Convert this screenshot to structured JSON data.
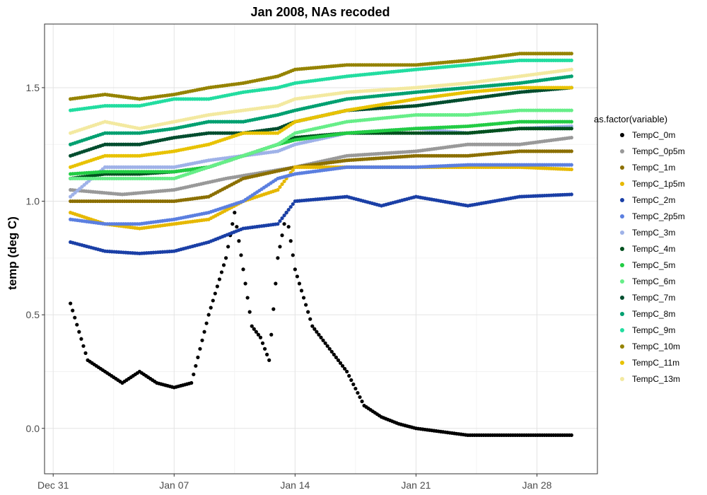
{
  "chart_data": {
    "type": "scatter",
    "title": "Jan 2008, NAs recoded",
    "xlabel": "",
    "ylabel": "temp (deg C)",
    "x_type": "date",
    "xlim": [
      "2007-12-30T12:00",
      "2008-01-31T12:00"
    ],
    "ylim": [
      -0.2,
      1.78
    ],
    "x_ticks": [
      {
        "date": "2007-12-31",
        "label": "Dec 31"
      },
      {
        "date": "2008-01-07",
        "label": "Jan 07"
      },
      {
        "date": "2008-01-14",
        "label": "Jan 14"
      },
      {
        "date": "2008-01-21",
        "label": "Jan 21"
      },
      {
        "date": "2008-01-28",
        "label": "Jan 28"
      }
    ],
    "y_ticks": [
      0.0,
      0.5,
      1.0,
      1.5
    ],
    "y_tick_labels": [
      "0.0",
      "0.5",
      "1.0",
      "1.5"
    ],
    "grid": true,
    "legend": {
      "title": "as.factor(variable)",
      "position": "right"
    },
    "series": [
      {
        "name": "TempC_0m",
        "color": "#000000",
        "points": [
          [
            "2008-01-01",
            0.55
          ],
          [
            "2008-01-02",
            0.3
          ],
          [
            "2008-01-03",
            0.25
          ],
          [
            "2008-01-04",
            0.2
          ],
          [
            "2008-01-05",
            0.25
          ],
          [
            "2008-01-06",
            0.2
          ],
          [
            "2008-01-07",
            0.18
          ],
          [
            "2008-01-08",
            0.2
          ],
          [
            "2008-01-09",
            0.5
          ],
          [
            "2008-01-10",
            0.75
          ],
          [
            "2008-01-10T12:00",
            0.95
          ],
          [
            "2008-01-11",
            0.7
          ],
          [
            "2008-01-11T12:00",
            0.45
          ],
          [
            "2008-01-12",
            0.4
          ],
          [
            "2008-01-12T12:00",
            0.3
          ],
          [
            "2008-01-13",
            0.75
          ],
          [
            "2008-01-13T12:00",
            0.95
          ],
          [
            "2008-01-14",
            0.7
          ],
          [
            "2008-01-15",
            0.45
          ],
          [
            "2008-01-16",
            0.35
          ],
          [
            "2008-01-17",
            0.25
          ],
          [
            "2008-01-18",
            0.1
          ],
          [
            "2008-01-19",
            0.05
          ],
          [
            "2008-01-20",
            0.02
          ],
          [
            "2008-01-21",
            0.0
          ],
          [
            "2008-01-24",
            -0.03
          ],
          [
            "2008-01-27",
            -0.03
          ],
          [
            "2008-01-30",
            -0.03
          ]
        ]
      },
      {
        "name": "TempC_0p5m",
        "color": "#999999",
        "points": [
          [
            "2008-01-01",
            1.05
          ],
          [
            "2008-01-04",
            1.03
          ],
          [
            "2008-01-07",
            1.05
          ],
          [
            "2008-01-10",
            1.1
          ],
          [
            "2008-01-14",
            1.15
          ],
          [
            "2008-01-17",
            1.2
          ],
          [
            "2008-01-21",
            1.22
          ],
          [
            "2008-01-24",
            1.25
          ],
          [
            "2008-01-27",
            1.25
          ],
          [
            "2008-01-30",
            1.28
          ]
        ]
      },
      {
        "name": "TempC_1m",
        "color": "#8B6F00",
        "points": [
          [
            "2008-01-01",
            1.0
          ],
          [
            "2008-01-04",
            1.0
          ],
          [
            "2008-01-07",
            1.0
          ],
          [
            "2008-01-09",
            1.02
          ],
          [
            "2008-01-11",
            1.1
          ],
          [
            "2008-01-14",
            1.15
          ],
          [
            "2008-01-17",
            1.18
          ],
          [
            "2008-01-21",
            1.2
          ],
          [
            "2008-01-24",
            1.2
          ],
          [
            "2008-01-27",
            1.22
          ],
          [
            "2008-01-30",
            1.22
          ]
        ]
      },
      {
        "name": "TempC_1p5m",
        "color": "#E6B800",
        "points": [
          [
            "2008-01-01",
            0.95
          ],
          [
            "2008-01-03",
            0.9
          ],
          [
            "2008-01-05",
            0.88
          ],
          [
            "2008-01-07",
            0.9
          ],
          [
            "2008-01-09",
            0.92
          ],
          [
            "2008-01-11",
            1.0
          ],
          [
            "2008-01-13",
            1.05
          ],
          [
            "2008-01-14",
            1.15
          ],
          [
            "2008-01-17",
            1.15
          ],
          [
            "2008-01-21",
            1.15
          ],
          [
            "2008-01-24",
            1.15
          ],
          [
            "2008-01-27",
            1.15
          ],
          [
            "2008-01-30",
            1.14
          ]
        ]
      },
      {
        "name": "TempC_2m",
        "color": "#1A3FA6",
        "points": [
          [
            "2008-01-01",
            0.82
          ],
          [
            "2008-01-03",
            0.78
          ],
          [
            "2008-01-05",
            0.77
          ],
          [
            "2008-01-07",
            0.78
          ],
          [
            "2008-01-09",
            0.82
          ],
          [
            "2008-01-11",
            0.88
          ],
          [
            "2008-01-13",
            0.9
          ],
          [
            "2008-01-14",
            1.0
          ],
          [
            "2008-01-17",
            1.02
          ],
          [
            "2008-01-19",
            0.98
          ],
          [
            "2008-01-21",
            1.02
          ],
          [
            "2008-01-24",
            0.98
          ],
          [
            "2008-01-27",
            1.02
          ],
          [
            "2008-01-30",
            1.03
          ]
        ]
      },
      {
        "name": "TempC_2p5m",
        "color": "#5B7FE0",
        "points": [
          [
            "2008-01-01",
            0.92
          ],
          [
            "2008-01-03",
            0.9
          ],
          [
            "2008-01-05",
            0.9
          ],
          [
            "2008-01-07",
            0.92
          ],
          [
            "2008-01-09",
            0.95
          ],
          [
            "2008-01-11",
            1.0
          ],
          [
            "2008-01-13",
            1.1
          ],
          [
            "2008-01-14",
            1.12
          ],
          [
            "2008-01-17",
            1.15
          ],
          [
            "2008-01-21",
            1.15
          ],
          [
            "2008-01-24",
            1.16
          ],
          [
            "2008-01-27",
            1.16
          ],
          [
            "2008-01-30",
            1.16
          ]
        ]
      },
      {
        "name": "TempC_3m",
        "color": "#9FB2E8",
        "points": [
          [
            "2008-01-01",
            1.02
          ],
          [
            "2008-01-03",
            1.15
          ],
          [
            "2008-01-05",
            1.15
          ],
          [
            "2008-01-07",
            1.15
          ],
          [
            "2008-01-09",
            1.18
          ],
          [
            "2008-01-11",
            1.2
          ],
          [
            "2008-01-13",
            1.22
          ],
          [
            "2008-01-14",
            1.25
          ],
          [
            "2008-01-17",
            1.3
          ],
          [
            "2008-01-21",
            1.32
          ],
          [
            "2008-01-24",
            1.3
          ],
          [
            "2008-01-27",
            1.32
          ],
          [
            "2008-01-30",
            1.33
          ]
        ]
      },
      {
        "name": "TempC_4m",
        "color": "#00501E",
        "points": [
          [
            "2008-01-01",
            1.1
          ],
          [
            "2008-01-03",
            1.12
          ],
          [
            "2008-01-05",
            1.12
          ],
          [
            "2008-01-07",
            1.13
          ],
          [
            "2008-01-09",
            1.15
          ],
          [
            "2008-01-11",
            1.2
          ],
          [
            "2008-01-13",
            1.25
          ],
          [
            "2008-01-14",
            1.28
          ],
          [
            "2008-01-17",
            1.3
          ],
          [
            "2008-01-21",
            1.3
          ],
          [
            "2008-01-24",
            1.3
          ],
          [
            "2008-01-27",
            1.32
          ],
          [
            "2008-01-30",
            1.32
          ]
        ]
      },
      {
        "name": "TempC_5m",
        "color": "#22CC44",
        "points": [
          [
            "2008-01-01",
            1.12
          ],
          [
            "2008-01-03",
            1.13
          ],
          [
            "2008-01-05",
            1.13
          ],
          [
            "2008-01-07",
            1.13
          ],
          [
            "2008-01-09",
            1.15
          ],
          [
            "2008-01-11",
            1.2
          ],
          [
            "2008-01-13",
            1.25
          ],
          [
            "2008-01-14",
            1.27
          ],
          [
            "2008-01-17",
            1.3
          ],
          [
            "2008-01-21",
            1.32
          ],
          [
            "2008-01-24",
            1.33
          ],
          [
            "2008-01-27",
            1.35
          ],
          [
            "2008-01-30",
            1.35
          ]
        ]
      },
      {
        "name": "TempC_6m",
        "color": "#66EE88",
        "points": [
          [
            "2008-01-01",
            1.1
          ],
          [
            "2008-01-03",
            1.1
          ],
          [
            "2008-01-05",
            1.1
          ],
          [
            "2008-01-07",
            1.1
          ],
          [
            "2008-01-09",
            1.15
          ],
          [
            "2008-01-11",
            1.2
          ],
          [
            "2008-01-13",
            1.25
          ],
          [
            "2008-01-14",
            1.3
          ],
          [
            "2008-01-17",
            1.35
          ],
          [
            "2008-01-21",
            1.38
          ],
          [
            "2008-01-24",
            1.38
          ],
          [
            "2008-01-27",
            1.4
          ],
          [
            "2008-01-30",
            1.4
          ]
        ]
      },
      {
        "name": "TempC_7m",
        "color": "#004D2E",
        "points": [
          [
            "2008-01-01",
            1.2
          ],
          [
            "2008-01-03",
            1.25
          ],
          [
            "2008-01-05",
            1.25
          ],
          [
            "2008-01-07",
            1.28
          ],
          [
            "2008-01-09",
            1.3
          ],
          [
            "2008-01-11",
            1.3
          ],
          [
            "2008-01-13",
            1.32
          ],
          [
            "2008-01-14",
            1.35
          ],
          [
            "2008-01-17",
            1.4
          ],
          [
            "2008-01-21",
            1.42
          ],
          [
            "2008-01-24",
            1.45
          ],
          [
            "2008-01-27",
            1.48
          ],
          [
            "2008-01-30",
            1.5
          ]
        ]
      },
      {
        "name": "TempC_8m",
        "color": "#00A070",
        "points": [
          [
            "2008-01-01",
            1.25
          ],
          [
            "2008-01-03",
            1.3
          ],
          [
            "2008-01-05",
            1.3
          ],
          [
            "2008-01-07",
            1.32
          ],
          [
            "2008-01-09",
            1.35
          ],
          [
            "2008-01-11",
            1.35
          ],
          [
            "2008-01-13",
            1.38
          ],
          [
            "2008-01-14",
            1.4
          ],
          [
            "2008-01-17",
            1.45
          ],
          [
            "2008-01-21",
            1.48
          ],
          [
            "2008-01-24",
            1.5
          ],
          [
            "2008-01-27",
            1.52
          ],
          [
            "2008-01-30",
            1.55
          ]
        ]
      },
      {
        "name": "TempC_9m",
        "color": "#22DDA0",
        "points": [
          [
            "2008-01-01",
            1.4
          ],
          [
            "2008-01-03",
            1.42
          ],
          [
            "2008-01-05",
            1.42
          ],
          [
            "2008-01-07",
            1.45
          ],
          [
            "2008-01-09",
            1.45
          ],
          [
            "2008-01-11",
            1.48
          ],
          [
            "2008-01-13",
            1.5
          ],
          [
            "2008-01-14",
            1.52
          ],
          [
            "2008-01-17",
            1.55
          ],
          [
            "2008-01-21",
            1.58
          ],
          [
            "2008-01-24",
            1.6
          ],
          [
            "2008-01-27",
            1.62
          ],
          [
            "2008-01-30",
            1.62
          ]
        ]
      },
      {
        "name": "TempC_10m",
        "color": "#958300",
        "points": [
          [
            "2008-01-01",
            1.45
          ],
          [
            "2008-01-03",
            1.47
          ],
          [
            "2008-01-05",
            1.45
          ],
          [
            "2008-01-07",
            1.47
          ],
          [
            "2008-01-09",
            1.5
          ],
          [
            "2008-01-11",
            1.52
          ],
          [
            "2008-01-13",
            1.55
          ],
          [
            "2008-01-14",
            1.58
          ],
          [
            "2008-01-17",
            1.6
          ],
          [
            "2008-01-21",
            1.6
          ],
          [
            "2008-01-24",
            1.62
          ],
          [
            "2008-01-27",
            1.65
          ],
          [
            "2008-01-30",
            1.65
          ]
        ]
      },
      {
        "name": "TempC_11m",
        "color": "#E8C200",
        "points": [
          [
            "2008-01-01",
            1.15
          ],
          [
            "2008-01-03",
            1.2
          ],
          [
            "2008-01-05",
            1.2
          ],
          [
            "2008-01-07",
            1.22
          ],
          [
            "2008-01-09",
            1.25
          ],
          [
            "2008-01-11",
            1.3
          ],
          [
            "2008-01-13",
            1.3
          ],
          [
            "2008-01-14",
            1.35
          ],
          [
            "2008-01-17",
            1.4
          ],
          [
            "2008-01-21",
            1.45
          ],
          [
            "2008-01-24",
            1.48
          ],
          [
            "2008-01-27",
            1.5
          ],
          [
            "2008-01-30",
            1.5
          ]
        ]
      },
      {
        "name": "TempC_13m",
        "color": "#F3E9A0",
        "points": [
          [
            "2008-01-01",
            1.3
          ],
          [
            "2008-01-03",
            1.35
          ],
          [
            "2008-01-05",
            1.32
          ],
          [
            "2008-01-07",
            1.35
          ],
          [
            "2008-01-09",
            1.38
          ],
          [
            "2008-01-11",
            1.4
          ],
          [
            "2008-01-13",
            1.42
          ],
          [
            "2008-01-14",
            1.45
          ],
          [
            "2008-01-17",
            1.48
          ],
          [
            "2008-01-21",
            1.5
          ],
          [
            "2008-01-24",
            1.52
          ],
          [
            "2008-01-27",
            1.55
          ],
          [
            "2008-01-30",
            1.58
          ]
        ]
      }
    ]
  }
}
